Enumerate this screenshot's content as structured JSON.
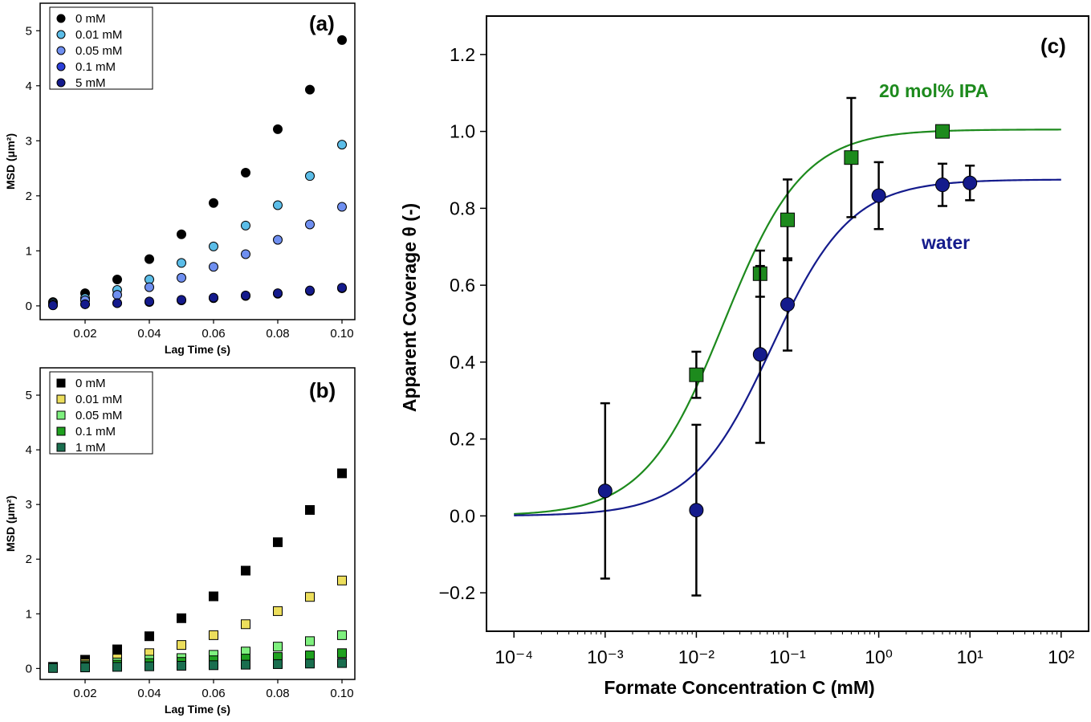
{
  "chart_data": [
    {
      "panel": "(a)",
      "type": "scatter",
      "xlabel": "Lag Time (s)",
      "ylabel": "MSD (μm²)",
      "xlim": [
        0.006,
        0.104
      ],
      "ylim": [
        -0.25,
        5.5
      ],
      "xticks": [
        "0.02",
        "0.04",
        "0.06",
        "0.08",
        "0.10"
      ],
      "yticks": [
        "0",
        "1",
        "2",
        "3",
        "4",
        "5"
      ],
      "marker": "circle",
      "legend_position": "top-left",
      "x": [
        0.01,
        0.02,
        0.03,
        0.04,
        0.05,
        0.06,
        0.07,
        0.08,
        0.09,
        0.1
      ],
      "series": [
        {
          "name": "0 mM",
          "color": "#000000",
          "values": [
            0.07,
            0.23,
            0.48,
            0.85,
            1.3,
            1.87,
            2.42,
            3.21,
            3.93,
            4.83
          ]
        },
        {
          "name": "0.01 mM",
          "color": "#5bbde8",
          "values": [
            0.05,
            0.14,
            0.29,
            0.48,
            0.78,
            1.08,
            1.46,
            1.83,
            2.36,
            2.93
          ]
        },
        {
          "name": "0.05 mM",
          "color": "#6f8ff0",
          "values": [
            0.03,
            0.1,
            0.2,
            0.34,
            0.51,
            0.71,
            0.94,
            1.2,
            1.48,
            1.8
          ]
        },
        {
          "name": "0.1 mM",
          "color": "#2c3fd9",
          "values": [
            0.01,
            0.03,
            0.05,
            0.07,
            0.1,
            0.14,
            0.18,
            0.22,
            0.27,
            0.32
          ]
        },
        {
          "name": "5 mM",
          "color": "#141a8c",
          "values": [
            0.01,
            0.03,
            0.05,
            0.08,
            0.11,
            0.15,
            0.19,
            0.23,
            0.28,
            0.33
          ]
        }
      ]
    },
    {
      "panel": "(b)",
      "type": "scatter",
      "xlabel": "Lag Time (s)",
      "ylabel": "MSD (μm²)",
      "xlim": [
        0.006,
        0.104
      ],
      "ylim": [
        -0.2,
        5.5
      ],
      "xticks": [
        "0.02",
        "0.04",
        "0.06",
        "0.08",
        "0.10"
      ],
      "yticks": [
        "0",
        "1",
        "2",
        "3",
        "4",
        "5"
      ],
      "marker": "square",
      "legend_position": "top-left",
      "x": [
        0.01,
        0.02,
        0.03,
        0.04,
        0.05,
        0.06,
        0.07,
        0.08,
        0.09,
        0.1
      ],
      "series": [
        {
          "name": "0 mM",
          "color": "#000000",
          "values": [
            0.03,
            0.16,
            0.35,
            0.59,
            0.92,
            1.32,
            1.79,
            2.31,
            2.9,
            3.57
          ]
        },
        {
          "name": "0.01 mM",
          "color": "#ecde5c",
          "values": [
            0.02,
            0.09,
            0.18,
            0.28,
            0.43,
            0.61,
            0.81,
            1.05,
            1.31,
            1.61
          ]
        },
        {
          "name": "0.05 mM",
          "color": "#7ef07e",
          "values": [
            0.02,
            0.06,
            0.11,
            0.16,
            0.19,
            0.25,
            0.31,
            0.4,
            0.5,
            0.61
          ]
        },
        {
          "name": "0.1 mM",
          "color": "#1fa11f",
          "values": [
            0.01,
            0.04,
            0.07,
            0.1,
            0.12,
            0.15,
            0.18,
            0.21,
            0.24,
            0.28
          ]
        },
        {
          "name": "1 mM",
          "color": "#1a6e4f",
          "values": [
            0.01,
            0.02,
            0.03,
            0.04,
            0.05,
            0.06,
            0.07,
            0.08,
            0.09,
            0.1
          ]
        }
      ]
    },
    {
      "panel": "(c)",
      "type": "scatter",
      "xlabel": "Formate Concentration C (mM)",
      "ylabel": "Apparent Coverage θ (-)",
      "xscale": "log",
      "xlim": [
        5e-05,
        200
      ],
      "ylim": [
        -0.3,
        1.3
      ],
      "xticks": [
        "10⁻⁴",
        "10⁻³",
        "10⁻²",
        "10⁻¹",
        "10⁰",
        "10¹",
        "10²"
      ],
      "yticks": [
        "−0.2",
        "0.0",
        "0.2",
        "0.4",
        "0.6",
        "0.8",
        "1.0",
        "1.2"
      ],
      "series": [
        {
          "name": "20 mol% IPA",
          "color": "#1d8a1d",
          "marker": "square",
          "x": [
            0.01,
            0.05,
            0.1,
            0.5,
            5
          ],
          "y": [
            0.367,
            0.63,
            0.77,
            0.932,
            1.0
          ],
          "err": [
            0.06,
            0.06,
            0.105,
            0.155,
            0.0
          ],
          "fit": {
            "theta_max": 1.005,
            "K": 50
          }
        },
        {
          "name": "water",
          "color": "#141b8c",
          "marker": "circle",
          "x": [
            0.001,
            0.01,
            0.05,
            0.1,
            1,
            5,
            10
          ],
          "y": [
            0.065,
            0.015,
            0.42,
            0.55,
            0.833,
            0.861,
            0.866
          ],
          "err": [
            0.228,
            0.222,
            0.23,
            0.12,
            0.087,
            0.055,
            0.045
          ],
          "fit": {
            "theta_max": 0.875,
            "K": 15
          }
        }
      ]
    }
  ]
}
